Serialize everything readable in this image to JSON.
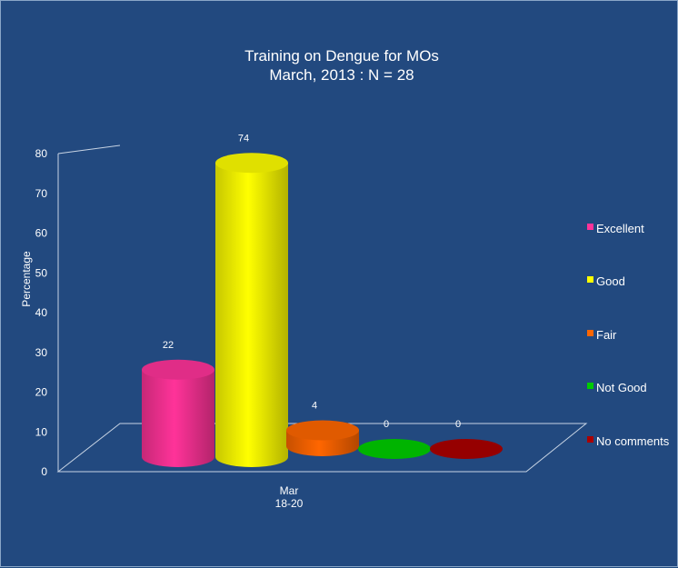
{
  "chart_data": {
    "type": "bar",
    "title": [
      "Training on Dengue for MOs",
      "March, 2013 : N = 28"
    ],
    "ylabel": "Percentage",
    "ylim": [
      0,
      80
    ],
    "yticks": [
      0,
      10,
      20,
      30,
      40,
      50,
      60,
      70,
      80
    ],
    "category_label": [
      "Mar",
      "18-20"
    ],
    "series": [
      {
        "name": "Excellent",
        "value": 22,
        "label": "22",
        "color": "#ff3399"
      },
      {
        "name": "Good",
        "value": 74,
        "label": "74",
        "color": "#ffff00"
      },
      {
        "name": "Fair",
        "value": 4,
        "label": "4",
        "color": "#ff6600"
      },
      {
        "name": "Not Good",
        "value": 0,
        "label": "0",
        "color": "#00cc00"
      },
      {
        "name": "No comments",
        "value": 0,
        "label": "0",
        "color": "#aa0000"
      }
    ],
    "style": "3d-cylinder",
    "legend_position": "right",
    "grid": false
  }
}
